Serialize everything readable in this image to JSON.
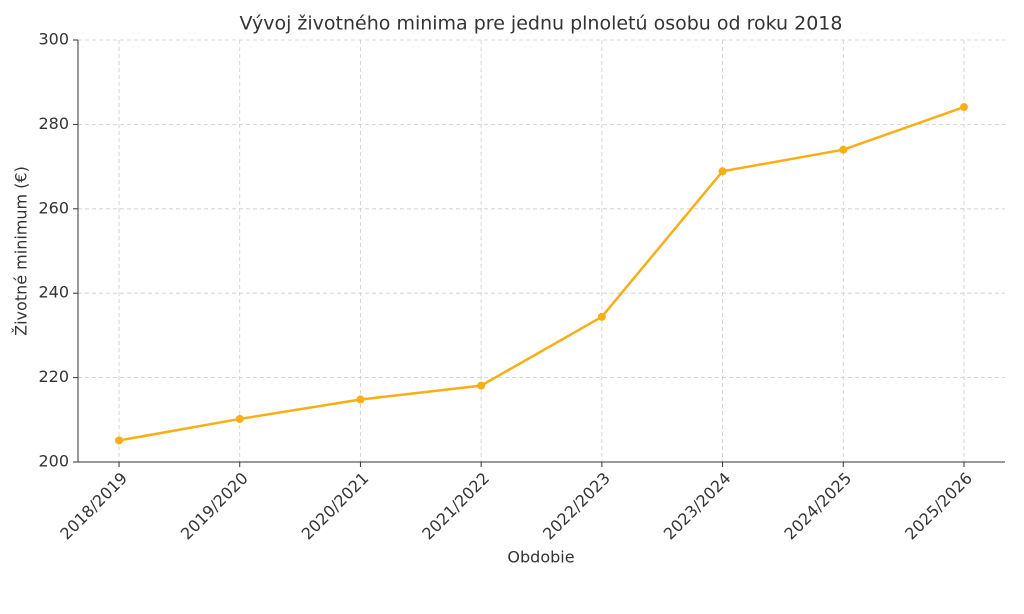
{
  "chart_data": {
    "type": "line",
    "title": "Vývoj životného minima pre jednu plnoletú osobu od roku 2018",
    "x_label": "Obdobie",
    "y_label": "Životné minimum (€)",
    "categories": [
      "2018/2019",
      "2019/2020",
      "2020/2021",
      "2021/2022",
      "2022/2023",
      "2023/2024",
      "2024/2025",
      "2025/2026"
    ],
    "series": [
      {
        "name": "Životné minimum",
        "color": "#f9ae14",
        "values": [
          205.1,
          210.2,
          214.8,
          218.1,
          234.4,
          268.9,
          274.0,
          284.1
        ]
      }
    ],
    "ylim": [
      200,
      300
    ],
    "yticks": [
      200,
      220,
      240,
      260,
      280,
      300
    ],
    "grid": true
  }
}
